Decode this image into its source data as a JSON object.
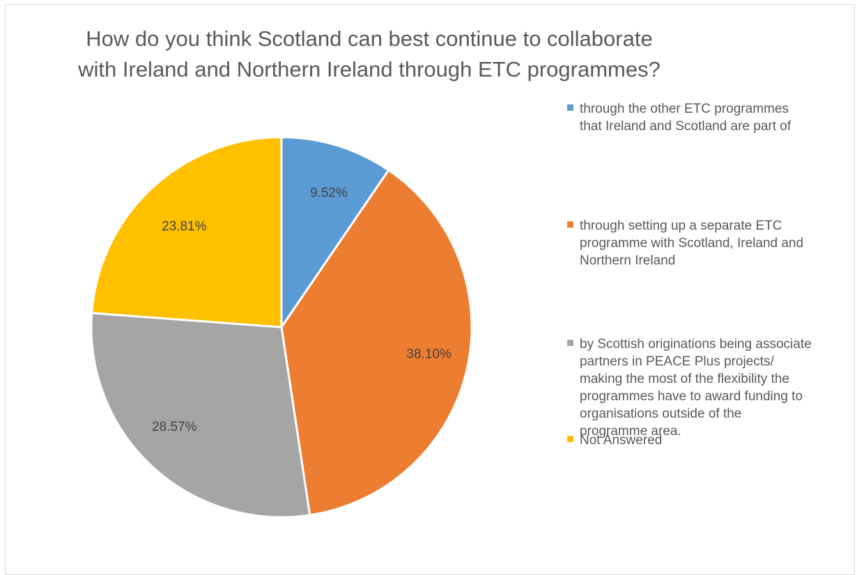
{
  "chart_data": {
    "type": "pie",
    "title_lines": [
      "How do you think Scotland can best continue to collaborate",
      "with Ireland and Northern Ireland through ETC programmes?"
    ],
    "categories": [
      "through the other ETC programmes that Ireland and Scotland are part of",
      "through setting up a separate ETC programme with Scotland, Ireland and Northern Ireland",
      "by Scottish originations being associate partners in PEACE Plus projects/ making the most of the flexibility the programmes have to award funding to organisations outside of the programme area.",
      "Not Answered"
    ],
    "legend_lines": [
      [
        "through the other ETC programmes",
        "that Ireland and Scotland are part of"
      ],
      [
        "through setting up a separate ETC",
        "programme with Scotland, Ireland and",
        "Northern Ireland"
      ],
      [
        "by Scottish originations being associate",
        "partners in PEACE Plus projects/",
        "making the most of the flexibility the",
        "programmes have to award funding to",
        "organisations outside of the",
        "programme area."
      ],
      [
        "Not Answered"
      ]
    ],
    "values": [
      9.52,
      38.1,
      28.57,
      23.81
    ],
    "data_labels": [
      "9.52%",
      "38.10%",
      "28.57%",
      "23.81%"
    ],
    "colors": [
      "#5b9bd5",
      "#ed7d31",
      "#a5a5a5",
      "#ffc000"
    ],
    "legend_position": "right",
    "start_angle": "12 o'clock, clockwise"
  }
}
